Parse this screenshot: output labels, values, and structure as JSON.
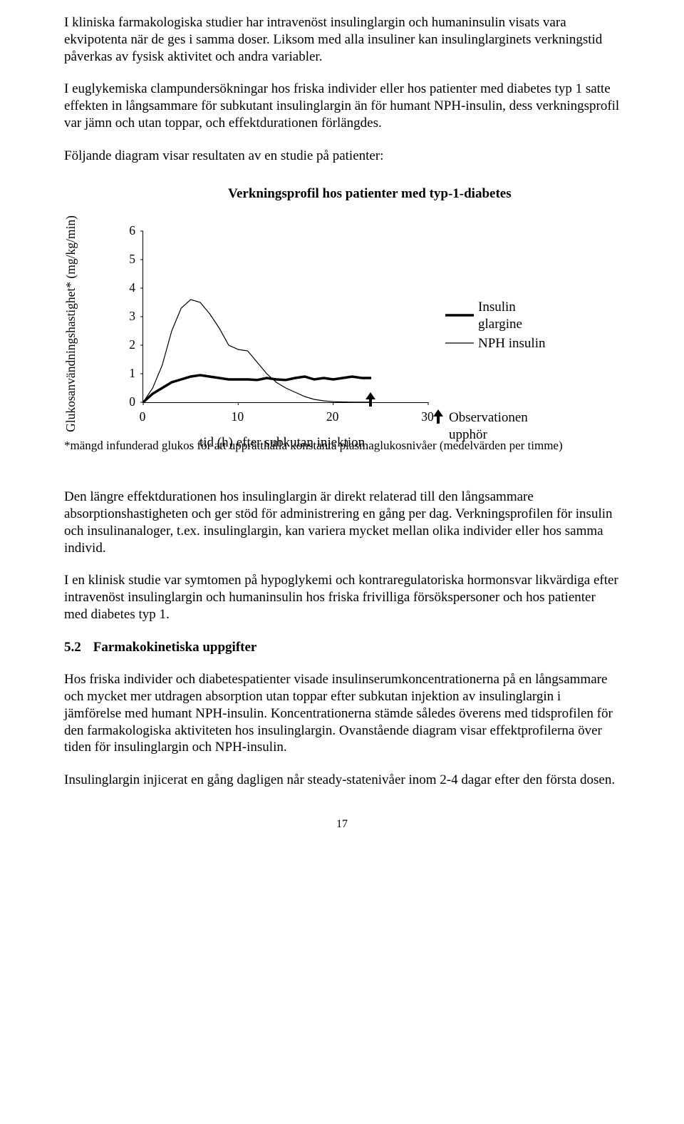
{
  "p1": "I kliniska farmakologiska studier har intravenöst insulinglargin och humaninsulin visats vara ekvipotenta när de ges i samma doser. Liksom med alla insuliner kan insulinglarginets verkningstid påverkas av fysisk aktivitet och andra variabler.",
  "p2": "I euglykemiska clampundersökningar hos friska individer eller hos patienter med diabetes typ 1 satte effekten in långsammare för subkutant insulinglargin än för humant NPH-insulin, dess verkningsprofil var jämn och utan toppar, och effektdurationen förlängdes.",
  "p3": "Följande diagram visar resultaten av en studie på patienter:",
  "chart": {
    "title": "Verkningsprofil hos patienter med typ-1-diabetes",
    "yaxis_label": "Glukosanvändningshastighet*\n(mg/kg/min)",
    "xaxis_label": "tid (h) efter subkutan injektion",
    "xlim": [
      0,
      30
    ],
    "ylim": [
      0,
      6
    ],
    "xticks": [
      0,
      10,
      20,
      30
    ],
    "yticks": [
      0,
      1,
      2,
      3,
      4,
      5,
      6
    ],
    "plot_bg": "#ffffff",
    "axis_color": "#000000",
    "series": {
      "glargine": {
        "label": "Insulin glargine",
        "color": "#000000",
        "stroke_width": 3.5,
        "x": [
          0,
          1,
          2,
          3,
          4,
          5,
          6,
          7,
          8,
          9,
          10,
          11,
          12,
          13,
          14,
          15,
          16,
          17,
          18,
          19,
          20,
          21,
          22,
          23,
          24
        ],
        "y": [
          0,
          0.3,
          0.5,
          0.7,
          0.8,
          0.9,
          0.95,
          0.9,
          0.85,
          0.8,
          0.8,
          0.8,
          0.78,
          0.85,
          0.8,
          0.78,
          0.85,
          0.9,
          0.8,
          0.85,
          0.8,
          0.85,
          0.9,
          0.85,
          0.85
        ]
      },
      "nph": {
        "label": "NPH insulin",
        "color": "#000000",
        "stroke_width": 1.2,
        "x": [
          0,
          1,
          2,
          3,
          4,
          5,
          6,
          7,
          8,
          9,
          10,
          11,
          12,
          13,
          14,
          15,
          16,
          17,
          18,
          19,
          20,
          21,
          22,
          23,
          24
        ],
        "y": [
          0,
          0.5,
          1.3,
          2.5,
          3.3,
          3.6,
          3.5,
          3.1,
          2.6,
          2.0,
          1.85,
          1.8,
          1.4,
          1.0,
          0.7,
          0.5,
          0.35,
          0.2,
          0.1,
          0.05,
          0.02,
          0.01,
          0.005,
          0.005,
          0.005
        ]
      }
    },
    "legend_items": [
      "glargine",
      "nph"
    ],
    "observation": {
      "label": "Observationen upphör",
      "x": 24
    }
  },
  "footnote": "*mängd infunderad glukos för att upprätthålla konstanta plasmaglukosnivåer (medelvärden per timme)",
  "p4": "Den längre effektdurationen hos insulinglargin är direkt relaterad till den långsammare absorptionshastigheten och ger stöd för administrering en gång per dag. Verkningsprofilen för insulin och insulinanaloger, t.ex. insulinglargin, kan variera mycket mellan olika individer eller hos samma individ.",
  "p5": "I en klinisk studie var symtomen på hypoglykemi och kontraregulatoriska hormonsvar likvärdiga efter intravenöst insulinglargin och humaninsulin hos friska frivilliga försökspersoner och hos patienter med diabetes typ 1.",
  "section": {
    "num": "5.2",
    "title": "Farmakokinetiska uppgifter"
  },
  "p6": "Hos friska individer och diabetespatienter visade insulinserumkoncentrationerna på en långsammare och mycket mer utdragen absorption utan toppar efter subkutan injektion av insulinglargin i jämförelse med humant NPH-insulin. Koncentrationerna stämde således överens med tidsprofilen för den farmakologiska aktiviteten hos insulinglargin. Ovanstående diagram visar effektprofilerna över tiden för insulinglargin och NPH-insulin.",
  "p7": "Insulinglargin injicerat en gång dagligen når steady-statenivåer inom 2-4 dagar efter den första dosen.",
  "pagenum": "17"
}
